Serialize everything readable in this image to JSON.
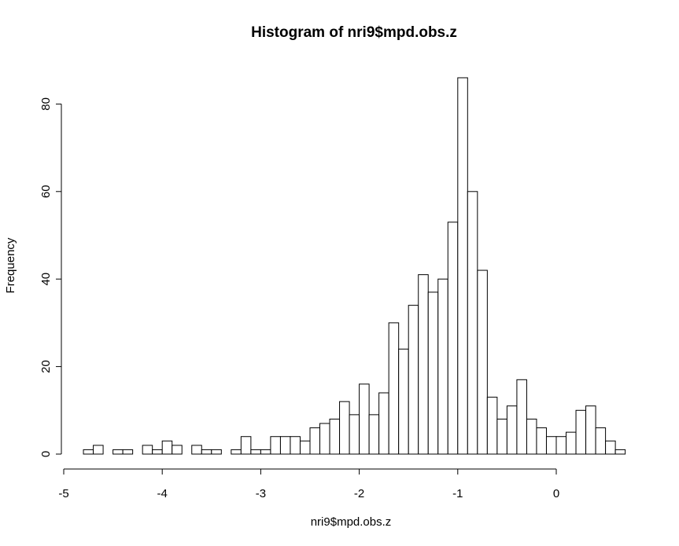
{
  "chart_data": {
    "type": "bar",
    "title": "Histogram of nri9$mpd.obs.z",
    "xlabel": "nri9$mpd.obs.z",
    "ylabel": "Frequency",
    "bin_width": 0.1,
    "bin_start": -4.8,
    "values": [
      1,
      2,
      0,
      1,
      1,
      0,
      2,
      1,
      3,
      2,
      0,
      2,
      1,
      1,
      0,
      1,
      4,
      1,
      1,
      4,
      4,
      4,
      3,
      6,
      7,
      8,
      12,
      9,
      16,
      9,
      14,
      30,
      24,
      34,
      41,
      37,
      40,
      53,
      86,
      60,
      42,
      13,
      8,
      11,
      17,
      8,
      6,
      4,
      4,
      5,
      10,
      11,
      6,
      3,
      1
    ],
    "xlim": [
      -5,
      0
    ],
    "ylim": [
      0,
      86
    ],
    "x_ticks": [
      "-5",
      "-4",
      "-3",
      "-2",
      "-1",
      "0"
    ],
    "y_ticks": [
      "0",
      "20",
      "40",
      "60",
      "80"
    ],
    "grid": false,
    "legend": "none"
  }
}
